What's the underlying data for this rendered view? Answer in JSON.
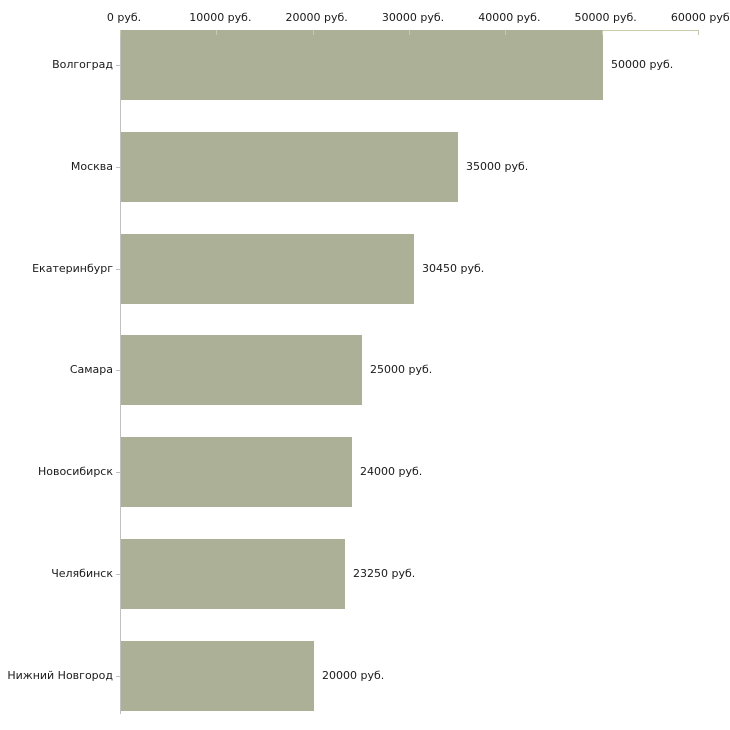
{
  "chart_data": {
    "type": "bar",
    "orientation": "horizontal",
    "title": "",
    "xlabel": "",
    "ylabel": "",
    "legend": false,
    "grid": false,
    "categories": [
      "Волгоград",
      "Москва",
      "Екатеринбург",
      "Самара",
      "Новосибирск",
      "Челябинск",
      "Нижний Новгород"
    ],
    "values": [
      50000,
      35000,
      30450,
      25000,
      24000,
      23250,
      20000
    ],
    "value_labels": [
      "50000 руб.",
      "35000 руб.",
      "30450 руб.",
      "25000 руб.",
      "24000 руб.",
      "23250 руб.",
      "20000 руб."
    ],
    "xlim": [
      0,
      60000
    ],
    "x_ticks": [
      {
        "value": 0,
        "label": "0 руб."
      },
      {
        "value": 10000,
        "label": "10000 руб."
      },
      {
        "value": 20000,
        "label": "20000 руб."
      },
      {
        "value": 30000,
        "label": "30000 руб."
      },
      {
        "value": 40000,
        "label": "40000 руб."
      },
      {
        "value": 50000,
        "label": "50000 руб."
      },
      {
        "value": 60000,
        "label": "60000 руб."
      }
    ],
    "colors": {
      "bar": "#abb096",
      "axis_horizontal": "#c9c9ab",
      "axis_vertical": "#c0c0c0",
      "text": "#1a1a1a",
      "background": "#ffffff"
    }
  }
}
